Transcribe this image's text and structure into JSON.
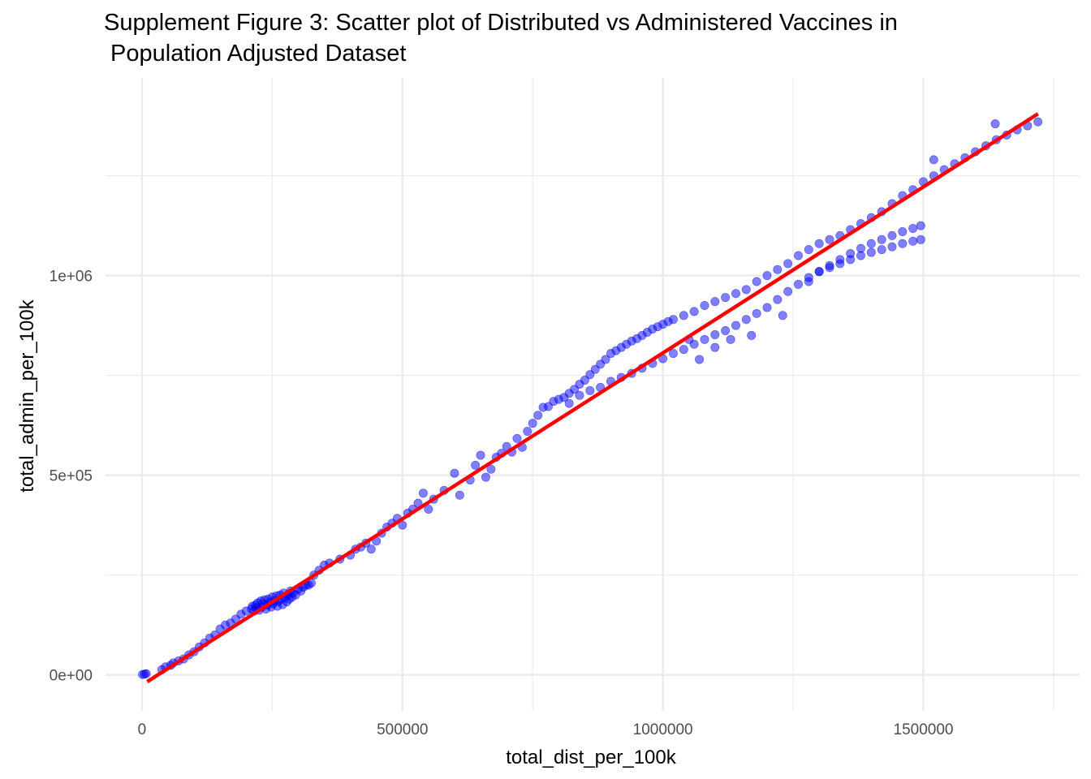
{
  "chart_data": {
    "type": "scatter",
    "title_lines": [
      "Supplement Figure 3: Scatter plot of Distributed vs Administered Vaccines in",
      " Population Adjusted Dataset"
    ],
    "xlabel": "total_dist_per_100k",
    "ylabel": "total_admin_per_100k",
    "xlim": [
      -70000,
      1800000
    ],
    "ylim": [
      -90000,
      1495000
    ],
    "x_ticks": [
      {
        "value": 0,
        "label": "0"
      },
      {
        "value": 500000,
        "label": "500000"
      },
      {
        "value": 1000000,
        "label": "1000000"
      },
      {
        "value": 1500000,
        "label": "1500000"
      }
    ],
    "y_ticks": [
      {
        "value": 0,
        "label": "0e+00"
      },
      {
        "value": 500000,
        "label": "5e+05"
      },
      {
        "value": 1000000,
        "label": "1e+06"
      }
    ],
    "grid": true,
    "legend": "none",
    "point_color": "#0000ff",
    "point_opacity": 0.5,
    "fit_line": {
      "color": "#ff0000",
      "x": [
        10000,
        1720000
      ],
      "y": [
        -17000,
        1405000
      ]
    },
    "series": [
      {
        "points": [
          [
            1000,
            1000
          ],
          [
            5000,
            2000
          ],
          [
            8000,
            3000
          ],
          [
            38000,
            13000
          ],
          [
            45000,
            20000
          ],
          [
            55000,
            24000
          ],
          [
            60000,
            30000
          ],
          [
            70000,
            35000
          ],
          [
            80000,
            40000
          ],
          [
            90000,
            50000
          ],
          [
            100000,
            58000
          ],
          [
            110000,
            70000
          ],
          [
            120000,
            80000
          ],
          [
            130000,
            92000
          ],
          [
            140000,
            100000
          ],
          [
            150000,
            115000
          ],
          [
            160000,
            125000
          ],
          [
            170000,
            130000
          ],
          [
            180000,
            140000
          ],
          [
            190000,
            152000
          ],
          [
            200000,
            160000
          ],
          [
            210000,
            165000
          ],
          [
            212000,
            172000
          ],
          [
            215000,
            160000
          ],
          [
            218000,
            175000
          ],
          [
            220000,
            168000
          ],
          [
            222000,
            180000
          ],
          [
            225000,
            162000
          ],
          [
            228000,
            185000
          ],
          [
            230000,
            170000
          ],
          [
            232000,
            178000
          ],
          [
            235000,
            188000
          ],
          [
            238000,
            165000
          ],
          [
            240000,
            175000
          ],
          [
            242000,
            190000
          ],
          [
            245000,
            182000
          ],
          [
            248000,
            170000
          ],
          [
            250000,
            195000
          ],
          [
            252000,
            178000
          ],
          [
            255000,
            186000
          ],
          [
            258000,
            198000
          ],
          [
            260000,
            172000
          ],
          [
            262000,
            184000
          ],
          [
            265000,
            200000
          ],
          [
            268000,
            190000
          ],
          [
            270000,
            176000
          ],
          [
            272000,
            205000
          ],
          [
            275000,
            195000
          ],
          [
            278000,
            183000
          ],
          [
            280000,
            200000
          ],
          [
            283000,
            190000
          ],
          [
            285000,
            210000
          ],
          [
            288000,
            195000
          ],
          [
            290000,
            205000
          ],
          [
            295000,
            200000
          ],
          [
            300000,
            215000
          ],
          [
            305000,
            210000
          ],
          [
            310000,
            220000
          ],
          [
            315000,
            225000
          ],
          [
            320000,
            225000
          ],
          [
            325000,
            230000
          ],
          [
            330000,
            250000
          ],
          [
            340000,
            262000
          ],
          [
            350000,
            275000
          ],
          [
            360000,
            280000
          ],
          [
            380000,
            290000
          ],
          [
            400000,
            300000
          ],
          [
            410000,
            315000
          ],
          [
            420000,
            320000
          ],
          [
            430000,
            330000
          ],
          [
            440000,
            315000
          ],
          [
            450000,
            335000
          ],
          [
            460000,
            355000
          ],
          [
            470000,
            370000
          ],
          [
            480000,
            380000
          ],
          [
            490000,
            392000
          ],
          [
            500000,
            375000
          ],
          [
            510000,
            405000
          ],
          [
            520000,
            415000
          ],
          [
            530000,
            430000
          ],
          [
            540000,
            455000
          ],
          [
            550000,
            415000
          ],
          [
            560000,
            440000
          ],
          [
            580000,
            462000
          ],
          [
            600000,
            505000
          ],
          [
            610000,
            450000
          ],
          [
            630000,
            488000
          ],
          [
            640000,
            525000
          ],
          [
            650000,
            550000
          ],
          [
            660000,
            495000
          ],
          [
            670000,
            515000
          ],
          [
            680000,
            545000
          ],
          [
            690000,
            555000
          ],
          [
            700000,
            572000
          ],
          [
            710000,
            558000
          ],
          [
            720000,
            592000
          ],
          [
            730000,
            570000
          ],
          [
            740000,
            610000
          ],
          [
            750000,
            630000
          ],
          [
            760000,
            650000
          ],
          [
            770000,
            670000
          ],
          [
            780000,
            672000
          ],
          [
            790000,
            685000
          ],
          [
            800000,
            690000
          ],
          [
            810000,
            695000
          ],
          [
            820000,
            705000
          ],
          [
            830000,
            715000
          ],
          [
            840000,
            728000
          ],
          [
            850000,
            738000
          ],
          [
            860000,
            752000
          ],
          [
            870000,
            765000
          ],
          [
            880000,
            778000
          ],
          [
            890000,
            790000
          ],
          [
            900000,
            805000
          ],
          [
            910000,
            812000
          ],
          [
            920000,
            820000
          ],
          [
            930000,
            828000
          ],
          [
            940000,
            836000
          ],
          [
            950000,
            842000
          ],
          [
            960000,
            850000
          ],
          [
            970000,
            858000
          ],
          [
            980000,
            866000
          ],
          [
            990000,
            872000
          ],
          [
            1000000,
            878000
          ],
          [
            1010000,
            885000
          ],
          [
            1020000,
            890000
          ],
          [
            1040000,
            900000
          ],
          [
            1060000,
            910000
          ],
          [
            1080000,
            925000
          ],
          [
            1100000,
            935000
          ],
          [
            1120000,
            945000
          ],
          [
            1140000,
            955000
          ],
          [
            1160000,
            965000
          ],
          [
            1180000,
            985000
          ],
          [
            1200000,
            1000000
          ],
          [
            1220000,
            1015000
          ],
          [
            1240000,
            1030000
          ],
          [
            1260000,
            1050000
          ],
          [
            1280000,
            1065000
          ],
          [
            1300000,
            1080000
          ],
          [
            1320000,
            1090000
          ],
          [
            1340000,
            1100000
          ],
          [
            1360000,
            1115000
          ],
          [
            1380000,
            1130000
          ],
          [
            1400000,
            1145000
          ],
          [
            1420000,
            1160000
          ],
          [
            1440000,
            1180000
          ],
          [
            1460000,
            1200000
          ],
          [
            1480000,
            1215000
          ],
          [
            1500000,
            1235000
          ],
          [
            1520000,
            1250000
          ],
          [
            1540000,
            1265000
          ],
          [
            1560000,
            1280000
          ],
          [
            1580000,
            1295000
          ],
          [
            1600000,
            1310000
          ],
          [
            1620000,
            1325000
          ],
          [
            1640000,
            1340000
          ],
          [
            1660000,
            1352000
          ],
          [
            1680000,
            1365000
          ],
          [
            1700000,
            1375000
          ],
          [
            1720000,
            1385000
          ],
          [
            1638000,
            1380000
          ],
          [
            1520000,
            1290000
          ],
          [
            820000,
            680000
          ],
          [
            840000,
            700000
          ],
          [
            860000,
            712000
          ],
          [
            880000,
            720000
          ],
          [
            900000,
            735000
          ],
          [
            920000,
            745000
          ],
          [
            940000,
            755000
          ],
          [
            960000,
            768000
          ],
          [
            980000,
            780000
          ],
          [
            1000000,
            792000
          ],
          [
            1020000,
            805000
          ],
          [
            1040000,
            815000
          ],
          [
            1060000,
            828000
          ],
          [
            1080000,
            840000
          ],
          [
            1100000,
            852000
          ],
          [
            1120000,
            862000
          ],
          [
            1140000,
            875000
          ],
          [
            1160000,
            890000
          ],
          [
            1180000,
            905000
          ],
          [
            1200000,
            920000
          ],
          [
            1220000,
            940000
          ],
          [
            1240000,
            960000
          ],
          [
            1260000,
            978000
          ],
          [
            1280000,
            995000
          ],
          [
            1300000,
            1010000
          ],
          [
            1320000,
            1025000
          ],
          [
            1340000,
            1040000
          ],
          [
            1360000,
            1055000
          ],
          [
            1380000,
            1068000
          ],
          [
            1400000,
            1080000
          ],
          [
            1420000,
            1090000
          ],
          [
            1440000,
            1100000
          ],
          [
            1460000,
            1110000
          ],
          [
            1480000,
            1118000
          ],
          [
            1495000,
            1125000
          ],
          [
            1300000,
            1010000
          ],
          [
            1320000,
            1020000
          ],
          [
            1340000,
            1030000
          ],
          [
            1360000,
            1040000
          ],
          [
            1380000,
            1050000
          ],
          [
            1400000,
            1058000
          ],
          [
            1420000,
            1065000
          ],
          [
            1440000,
            1072000
          ],
          [
            1460000,
            1080000
          ],
          [
            1480000,
            1086000
          ],
          [
            1495000,
            1090000
          ],
          [
            1070000,
            790000
          ],
          [
            1100000,
            820000
          ],
          [
            1130000,
            840000
          ],
          [
            1170000,
            850000
          ],
          [
            1230000,
            900000
          ],
          [
            1280000,
            985000
          ],
          [
            1050000,
            840000
          ]
        ]
      }
    ]
  }
}
